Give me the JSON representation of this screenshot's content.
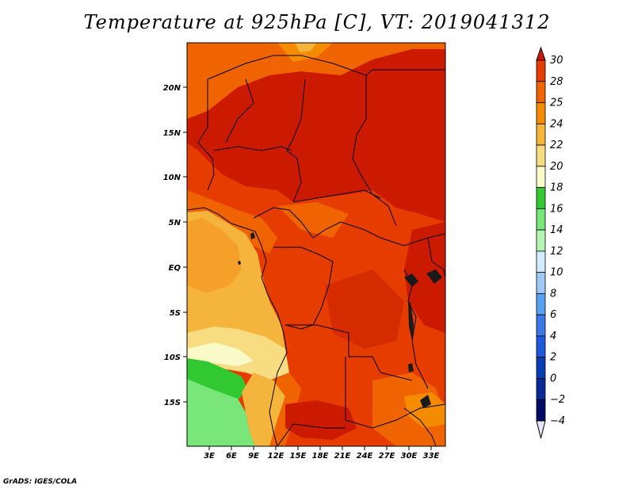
{
  "title": "Temperature at 925hPa [C], VT: 2019041312",
  "footer": "GrADS: IGES/COLA",
  "map": {
    "lat_labels": [
      "20N",
      "15N",
      "10N",
      "5N",
      "EQ",
      "5S",
      "10S",
      "15S"
    ],
    "lon_labels": [
      "3E",
      "6E",
      "9E",
      "12E",
      "15E",
      "18E",
      "21E",
      "24E",
      "27E",
      "30E",
      "33E"
    ]
  },
  "colorbar": {
    "labels": [
      "30",
      "28",
      "25",
      "24",
      "22",
      "20",
      "18",
      "16",
      "14",
      "12",
      "10",
      "8",
      "6",
      "4",
      "2",
      "0",
      "-2",
      "-4"
    ],
    "colors": [
      "#cc1a00",
      "#e63c00",
      "#f06400",
      "#f58c00",
      "#f5b43c",
      "#f8dc82",
      "#fafac8",
      "#32c832",
      "#78e678",
      "#b4f5b4",
      "#d2ebff",
      "#a0c8f5",
      "#5aa0f0",
      "#3c78e6",
      "#1e5adc",
      "#0a3cb4",
      "#0a2896",
      "#000a64",
      "#e6e6fa"
    ]
  },
  "chart_data": {
    "type": "heatmap",
    "title": "Temperature at 925hPa [C], VT: 2019041312",
    "x_ticks": [
      "3E",
      "6E",
      "9E",
      "12E",
      "15E",
      "18E",
      "21E",
      "24E",
      "27E",
      "30E",
      "33E"
    ],
    "y_ticks": [
      "20N",
      "15N",
      "10N",
      "5N",
      "EQ",
      "5S",
      "10S",
      "15S"
    ],
    "xlim": [
      0,
      34
    ],
    "ylim": [
      -20,
      24.5
    ],
    "levels": [
      -4,
      -2,
      0,
      2,
      4,
      6,
      8,
      10,
      12,
      14,
      16,
      18,
      20,
      22,
      24,
      25,
      28,
      30
    ],
    "units": "C"
  }
}
